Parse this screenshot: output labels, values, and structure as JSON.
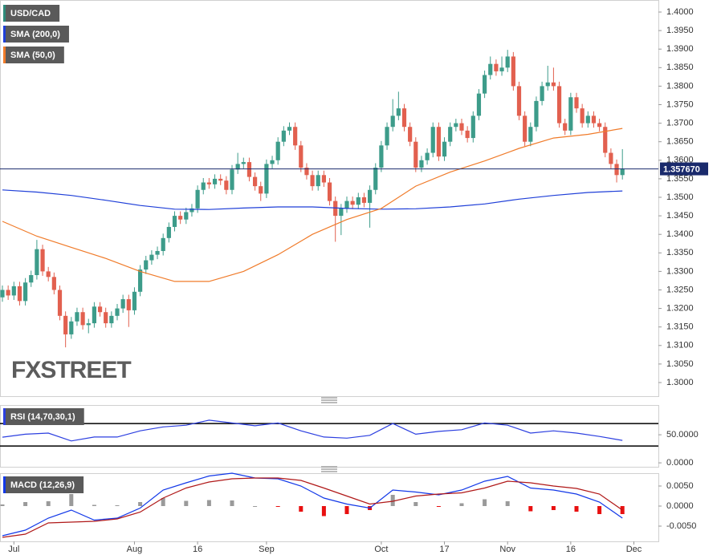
{
  "chart_data": [
    {
      "type": "candlestick",
      "name": "USD/CAD",
      "legend_color": "#2e8b7a",
      "up_color": "#3d9c8a",
      "down_color": "#e2604f",
      "watermark": "FXSTREET",
      "candles": [
        [
          1.323,
          1.3262,
          1.3218,
          1.325
        ],
        [
          1.325,
          1.3262,
          1.3223,
          1.3235
        ],
        [
          1.3235,
          1.3272,
          1.3223,
          1.326
        ],
        [
          1.326,
          1.3272,
          1.3208,
          1.322
        ],
        [
          1.322,
          1.3282,
          1.3208,
          1.327
        ],
        [
          1.327,
          1.3302,
          1.3258,
          1.329
        ],
        [
          1.329,
          1.3385,
          1.3278,
          1.336
        ],
        [
          1.336,
          1.3372,
          1.3288,
          1.33
        ],
        [
          1.33,
          1.3312,
          1.3273,
          1.3285
        ],
        [
          1.3285,
          1.3297,
          1.3238,
          1.325
        ],
        [
          1.325,
          1.3262,
          1.3168,
          1.318
        ],
        [
          1.318,
          1.3192,
          1.3095,
          1.313
        ],
        [
          1.313,
          1.3177,
          1.3118,
          1.3165
        ],
        [
          1.3165,
          1.3202,
          1.3153,
          1.319
        ],
        [
          1.319,
          1.3202,
          1.3143,
          1.3155
        ],
        [
          1.3155,
          1.3172,
          1.3133,
          1.316
        ],
        [
          1.316,
          1.3217,
          1.3148,
          1.3205
        ],
        [
          1.3205,
          1.3217,
          1.3178,
          1.319
        ],
        [
          1.319,
          1.3202,
          1.3148,
          1.316
        ],
        [
          1.316,
          1.3192,
          1.3148,
          1.318
        ],
        [
          1.318,
          1.3212,
          1.3168,
          1.32
        ],
        [
          1.32,
          1.3237,
          1.3188,
          1.3225
        ],
        [
          1.3225,
          1.3237,
          1.315,
          1.3195
        ],
        [
          1.3195,
          1.3257,
          1.3183,
          1.3245
        ],
        [
          1.3245,
          1.3317,
          1.3233,
          1.3305
        ],
        [
          1.3305,
          1.3342,
          1.3293,
          1.333
        ],
        [
          1.333,
          1.3357,
          1.3318,
          1.3345
        ],
        [
          1.3345,
          1.3367,
          1.3333,
          1.3355
        ],
        [
          1.3355,
          1.3402,
          1.3343,
          1.339
        ],
        [
          1.339,
          1.3432,
          1.3378,
          1.342
        ],
        [
          1.342,
          1.3462,
          1.3408,
          1.345
        ],
        [
          1.345,
          1.3462,
          1.3428,
          1.344
        ],
        [
          1.344,
          1.3472,
          1.3428,
          1.346
        ],
        [
          1.346,
          1.3482,
          1.3448,
          1.347
        ],
        [
          1.347,
          1.3532,
          1.3458,
          1.352
        ],
        [
          1.352,
          1.3552,
          1.3508,
          1.354
        ],
        [
          1.354,
          1.3552,
          1.3523,
          1.3535
        ],
        [
          1.3535,
          1.3562,
          1.3523,
          1.355
        ],
        [
          1.355,
          1.3562,
          1.3533,
          1.3545
        ],
        [
          1.3545,
          1.3557,
          1.3508,
          1.352
        ],
        [
          1.352,
          1.3587,
          1.3508,
          1.3575
        ],
        [
          1.3575,
          1.362,
          1.3563,
          1.359
        ],
        [
          1.359,
          1.3607,
          1.3578,
          1.3595
        ],
        [
          1.3595,
          1.3607,
          1.3543,
          1.3555
        ],
        [
          1.3555,
          1.3567,
          1.3518,
          1.353
        ],
        [
          1.353,
          1.3542,
          1.349,
          1.351
        ],
        [
          1.351,
          1.3602,
          1.3498,
          1.359
        ],
        [
          1.359,
          1.3612,
          1.3578,
          1.36
        ],
        [
          1.36,
          1.3662,
          1.3588,
          1.365
        ],
        [
          1.365,
          1.3692,
          1.3638,
          1.368
        ],
        [
          1.368,
          1.3702,
          1.3668,
          1.369
        ],
        [
          1.369,
          1.3702,
          1.3628,
          1.364
        ],
        [
          1.364,
          1.3652,
          1.3568,
          1.358
        ],
        [
          1.358,
          1.3592,
          1.3548,
          1.356
        ],
        [
          1.356,
          1.3572,
          1.3518,
          1.353
        ],
        [
          1.353,
          1.3572,
          1.3518,
          1.356
        ],
        [
          1.356,
          1.3572,
          1.3528,
          1.354
        ],
        [
          1.354,
          1.3552,
          1.3478,
          1.349
        ],
        [
          1.349,
          1.3502,
          1.338,
          1.345
        ],
        [
          1.345,
          1.3482,
          1.3398,
          1.347
        ],
        [
          1.347,
          1.3502,
          1.3458,
          1.349
        ],
        [
          1.349,
          1.3502,
          1.3468,
          1.348
        ],
        [
          1.348,
          1.3512,
          1.3468,
          1.35
        ],
        [
          1.35,
          1.3512,
          1.3473,
          1.3485
        ],
        [
          1.3485,
          1.3532,
          1.3418,
          1.352
        ],
        [
          1.352,
          1.3592,
          1.3508,
          1.358
        ],
        [
          1.358,
          1.3652,
          1.3568,
          1.364
        ],
        [
          1.364,
          1.3702,
          1.3628,
          1.369
        ],
        [
          1.369,
          1.3765,
          1.3678,
          1.372
        ],
        [
          1.372,
          1.3785,
          1.3708,
          1.374
        ],
        [
          1.374,
          1.3752,
          1.3678,
          1.369
        ],
        [
          1.369,
          1.3702,
          1.3638,
          1.365
        ],
        [
          1.365,
          1.3662,
          1.3568,
          1.358
        ],
        [
          1.358,
          1.3612,
          1.3568,
          1.36
        ],
        [
          1.36,
          1.3632,
          1.3588,
          1.362
        ],
        [
          1.362,
          1.3702,
          1.3608,
          1.369
        ],
        [
          1.369,
          1.3702,
          1.3598,
          1.361
        ],
        [
          1.361,
          1.3662,
          1.3598,
          1.365
        ],
        [
          1.365,
          1.3702,
          1.3638,
          1.369
        ],
        [
          1.369,
          1.3712,
          1.3678,
          1.37
        ],
        [
          1.37,
          1.3712,
          1.3668,
          1.368
        ],
        [
          1.368,
          1.3692,
          1.3648,
          1.366
        ],
        [
          1.366,
          1.3732,
          1.3648,
          1.372
        ],
        [
          1.372,
          1.3792,
          1.3708,
          1.378
        ],
        [
          1.378,
          1.3842,
          1.3768,
          1.383
        ],
        [
          1.383,
          1.388,
          1.3818,
          1.386
        ],
        [
          1.386,
          1.3872,
          1.3828,
          1.384
        ],
        [
          1.384,
          1.388,
          1.3828,
          1.385
        ],
        [
          1.385,
          1.3898,
          1.3838,
          1.388
        ],
        [
          1.388,
          1.3892,
          1.3788,
          1.38
        ],
        [
          1.38,
          1.3812,
          1.3708,
          1.372
        ],
        [
          1.372,
          1.3732,
          1.3638,
          1.365
        ],
        [
          1.365,
          1.3702,
          1.3638,
          1.369
        ],
        [
          1.369,
          1.3772,
          1.3678,
          1.376
        ],
        [
          1.376,
          1.3812,
          1.3748,
          1.38
        ],
        [
          1.38,
          1.3855,
          1.3788,
          1.381
        ],
        [
          1.381,
          1.385,
          1.3788,
          1.38
        ],
        [
          1.38,
          1.3812,
          1.3688,
          1.37
        ],
        [
          1.37,
          1.3712,
          1.3668,
          1.368
        ],
        [
          1.368,
          1.3782,
          1.3668,
          1.377
        ],
        [
          1.377,
          1.3782,
          1.3728,
          1.374
        ],
        [
          1.374,
          1.3752,
          1.3688,
          1.37
        ],
        [
          1.37,
          1.3732,
          1.3688,
          1.372
        ],
        [
          1.372,
          1.3732,
          1.3688,
          1.37
        ],
        [
          1.37,
          1.3712,
          1.3678,
          1.369
        ],
        [
          1.369,
          1.3702,
          1.3608,
          1.362
        ],
        [
          1.362,
          1.3632,
          1.3578,
          1.359
        ],
        [
          1.359,
          1.3602,
          1.354,
          1.356
        ],
        [
          1.356,
          1.363,
          1.3548,
          1.3577
        ]
      ],
      "series": [
        {
          "name": "SMA (200,0)",
          "color": "#1f3fd8",
          "x": [
            0,
            6,
            12,
            18,
            24,
            30,
            36,
            42,
            48,
            54,
            60,
            66,
            72,
            78,
            84,
            90,
            96,
            102,
            108
          ],
          "values": [
            1.352,
            1.3514,
            1.3505,
            1.3492,
            1.3478,
            1.3468,
            1.3467,
            1.3471,
            1.3474,
            1.3474,
            1.347,
            1.3468,
            1.3469,
            1.3474,
            1.3482,
            1.3495,
            1.3505,
            1.3513,
            1.3517
          ]
        },
        {
          "name": "SMA (50,0)",
          "color": "#f07b2a",
          "x": [
            0,
            6,
            12,
            18,
            24,
            30,
            36,
            42,
            48,
            54,
            60,
            66,
            72,
            78,
            84,
            90,
            96,
            102,
            108
          ],
          "values": [
            1.3435,
            1.3395,
            1.3365,
            1.3335,
            1.33,
            1.3273,
            1.3273,
            1.33,
            1.3345,
            1.34,
            1.344,
            1.347,
            1.353,
            1.3568,
            1.3598,
            1.3632,
            1.366,
            1.367,
            1.3686
          ]
        }
      ],
      "last_price": {
        "value": 1.35767,
        "label": "1.357670",
        "color": "#1a2a6c"
      },
      "ylim": [
        1.2961,
        1.40325
      ],
      "yticks": [
        {
          "value": 1.4,
          "label": "1.4000"
        },
        {
          "value": 1.395,
          "label": "1.3950"
        },
        {
          "value": 1.39,
          "label": "1.3900"
        },
        {
          "value": 1.385,
          "label": "1.3850"
        },
        {
          "value": 1.38,
          "label": "1.3800"
        },
        {
          "value": 1.375,
          "label": "1.3750"
        },
        {
          "value": 1.37,
          "label": "1.3700"
        },
        {
          "value": 1.365,
          "label": "1.3650"
        },
        {
          "value": 1.36,
          "label": "1.3600"
        },
        {
          "value": 1.355,
          "label": "1.3550"
        },
        {
          "value": 1.35,
          "label": "1.3500"
        },
        {
          "value": 1.345,
          "label": "1.3450"
        },
        {
          "value": 1.34,
          "label": "1.3400"
        },
        {
          "value": 1.335,
          "label": "1.3350"
        },
        {
          "value": 1.33,
          "label": "1.3300"
        },
        {
          "value": 1.325,
          "label": "1.3250"
        },
        {
          "value": 1.32,
          "label": "1.3200"
        },
        {
          "value": 1.315,
          "label": "1.3150"
        },
        {
          "value": 1.31,
          "label": "1.3100"
        },
        {
          "value": 1.305,
          "label": "1.3050"
        },
        {
          "value": 1.3,
          "label": "1.3000"
        }
      ],
      "xticks": [
        {
          "value": 2,
          "label": "Jul"
        },
        {
          "value": 23,
          "label": "Aug"
        },
        {
          "value": 34,
          "label": "16"
        },
        {
          "value": 46,
          "label": "Sep"
        },
        {
          "value": 66,
          "label": "Oct"
        },
        {
          "value": 77,
          "label": "17"
        },
        {
          "value": 88,
          "label": "Nov"
        },
        {
          "value": 99,
          "label": "16"
        },
        {
          "value": 110,
          "label": "Dec"
        }
      ]
    },
    {
      "type": "line",
      "name": "RSI (14,70,30,1)",
      "legend_color": "#2c3fe0",
      "color": "#2c3fe0",
      "x": [
        0,
        4,
        8,
        12,
        16,
        20,
        24,
        28,
        32,
        36,
        40,
        44,
        48,
        52,
        56,
        60,
        64,
        68,
        72,
        76,
        80,
        84,
        88,
        92,
        96,
        100,
        104,
        108
      ],
      "values": [
        45.7,
        51,
        53,
        39,
        46,
        46,
        57,
        64,
        67,
        76,
        71,
        66,
        71,
        57,
        46,
        44,
        49,
        70,
        51,
        56,
        59,
        71,
        67,
        53,
        57,
        53,
        47,
        40
      ],
      "levels": [
        70,
        30
      ],
      "ylim": [
        -7,
        103
      ],
      "yticks": [
        {
          "value": 50,
          "label": "50.0000"
        },
        {
          "value": 0,
          "label": "0.0000"
        }
      ]
    },
    {
      "type": "macd",
      "name": "MACD (12,26,9)",
      "legend_color": "#1238e8",
      "x": [
        0,
        4,
        8,
        12,
        16,
        20,
        24,
        28,
        32,
        36,
        40,
        44,
        48,
        52,
        56,
        60,
        64,
        68,
        72,
        76,
        80,
        84,
        88,
        92,
        96,
        100,
        104,
        108
      ],
      "series": [
        {
          "color": "#1238e8",
          "values": [
            -0.0074,
            -0.006,
            -0.003,
            -0.001,
            -0.0035,
            -0.003,
            -0.0005,
            0.004,
            0.0058,
            0.0075,
            0.0082,
            0.007,
            0.0068,
            0.005,
            0.002,
            0.0005,
            -0.0005,
            0.004,
            0.0035,
            0.0028,
            0.004,
            0.0062,
            0.0074,
            0.0045,
            0.004,
            0.003,
            0.001,
            -0.003
          ]
        },
        {
          "color": "#b01818",
          "values": [
            -0.0078,
            -0.007,
            -0.0042,
            -0.004,
            -0.0038,
            -0.0032,
            -0.0015,
            0.002,
            0.0045,
            0.006,
            0.0068,
            0.007,
            0.007,
            0.0064,
            0.0045,
            0.0025,
            0.0005,
            0.0012,
            0.0025,
            0.003,
            0.0033,
            0.0045,
            0.0062,
            0.0058,
            0.005,
            0.0044,
            0.003,
            -0.001
          ]
        }
      ],
      "histogram": {
        "up_color": "#9a9a9a",
        "down_color": "#e81010",
        "values": [
          0.0004,
          0.001,
          0.0012,
          0.003,
          0.0003,
          0.0002,
          0.001,
          0.002,
          0.0013,
          0.0015,
          0.0014,
          0,
          -0.0002,
          -0.0014,
          -0.0025,
          -0.002,
          -0.001,
          0.0028,
          0.001,
          -0.0002,
          0.0007,
          0.0017,
          0.0012,
          -0.0013,
          -0.001,
          -0.0014,
          -0.002,
          -0.002
        ]
      },
      "ylim": [
        -0.0088,
        0.0082
      ],
      "yticks": [
        {
          "value": 0.005,
          "label": "0.0050"
        },
        {
          "value": 0,
          "label": "0.0000"
        },
        {
          "value": -0.005,
          "label": "-0.0050"
        }
      ]
    }
  ]
}
